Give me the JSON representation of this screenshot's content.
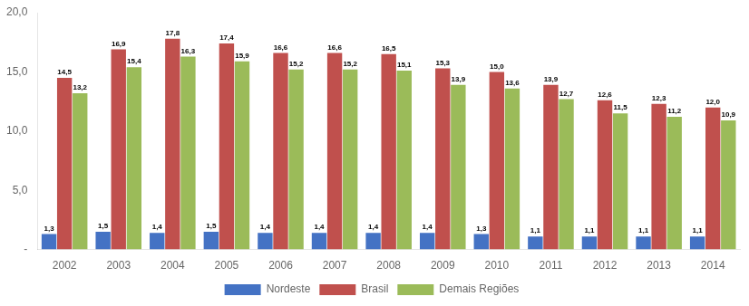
{
  "chart_data": {
    "type": "bar",
    "categories": [
      "2002",
      "2003",
      "2004",
      "2005",
      "2006",
      "2007",
      "2008",
      "2009",
      "2010",
      "2011",
      "2012",
      "2013",
      "2014"
    ],
    "series": [
      {
        "name": "Nordeste",
        "color": "#4472C4",
        "values": [
          1.3,
          1.5,
          1.4,
          1.5,
          1.4,
          1.4,
          1.4,
          1.4,
          1.3,
          1.1,
          1.1,
          1.1,
          1.1
        ],
        "value_labels": [
          "1,3",
          "1,5",
          "1,4",
          "1,5",
          "1,4",
          "1,4",
          "1,4",
          "1,4",
          "1,3",
          "1,1",
          "1,1",
          "1,1",
          "1,1"
        ]
      },
      {
        "name": "Brasil",
        "color": "#C0504D",
        "values": [
          14.5,
          16.9,
          17.8,
          17.4,
          16.6,
          16.6,
          16.5,
          15.3,
          15.0,
          13.9,
          12.6,
          12.3,
          12.0
        ],
        "value_labels": [
          "14,5",
          "16,9",
          "17,8",
          "17,4",
          "16,6",
          "16,6",
          "16,5",
          "15,3",
          "15,0",
          "13,9",
          "12,6",
          "12,3",
          "12,0"
        ]
      },
      {
        "name": "Demais Regiões",
        "color": "#9BBB59",
        "values": [
          13.2,
          15.4,
          16.3,
          15.9,
          15.2,
          15.2,
          15.1,
          13.9,
          13.6,
          12.7,
          11.5,
          11.2,
          10.9
        ],
        "value_labels": [
          "13,2",
          "15,4",
          "16,3",
          "15,9",
          "15,2",
          "15,2",
          "15,1",
          "13,9",
          "13,6",
          "12,7",
          "11,5",
          "11,2",
          "10,9"
        ]
      }
    ],
    "ylim": [
      0,
      20.0
    ],
    "yticks": [
      {
        "value": 0.0,
        "label": "-"
      },
      {
        "value": 5.0,
        "label": "5,0"
      },
      {
        "value": 10.0,
        "label": "10,0"
      },
      {
        "value": 15.0,
        "label": "15,0"
      },
      {
        "value": 20.0,
        "label": "20,0"
      }
    ],
    "grid": false,
    "legend": "bottom",
    "data_labels": true
  }
}
